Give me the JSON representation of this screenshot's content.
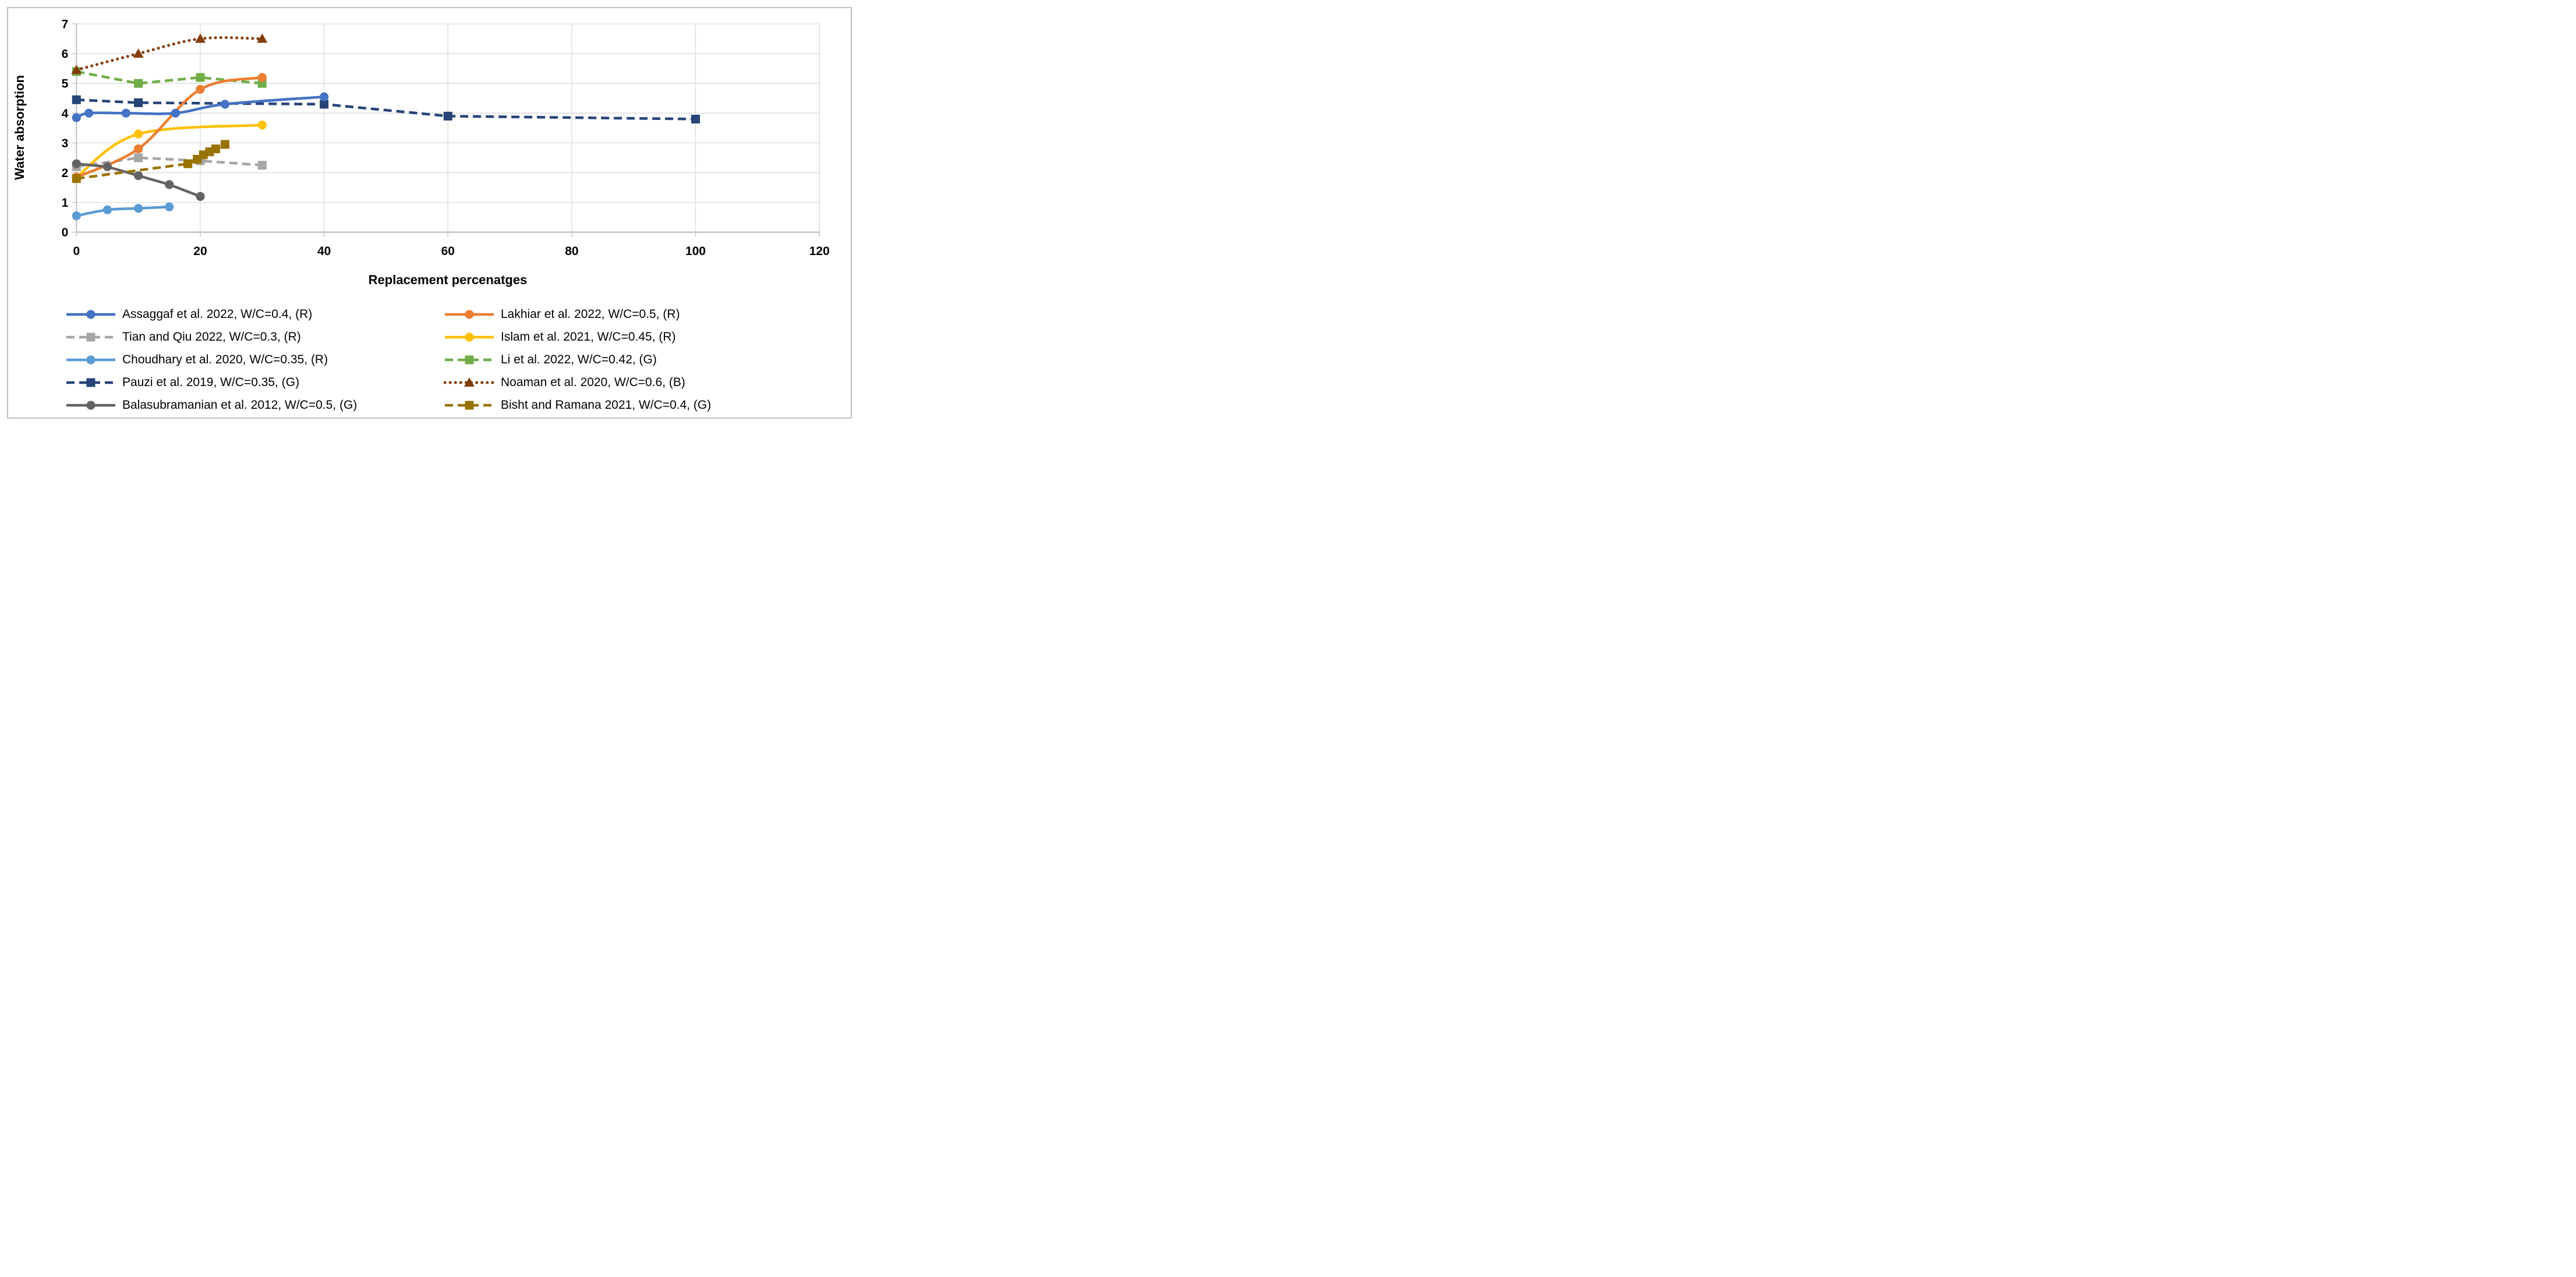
{
  "chart_data": {
    "type": "line",
    "title": "",
    "xlabel": "Replacement percenatges",
    "ylabel": "Water absorption",
    "xlim": [
      0,
      120
    ],
    "ylim": [
      0,
      7
    ],
    "x_ticks": [
      0,
      20,
      40,
      60,
      80,
      100,
      120
    ],
    "y_ticks": [
      0,
      1,
      2,
      3,
      4,
      5,
      6,
      7
    ],
    "grid": true,
    "legend_position": "bottom",
    "legend_columns": 2,
    "colors": {
      "gridline": "#D9D9D9",
      "axis_line": "#BFBFBF",
      "text": "#000000"
    },
    "series": [
      {
        "name": "Assaggaf et al. 2022, W/C=0.4, (R)",
        "color": "#4472C4",
        "line": "solid",
        "marker": "circle",
        "smooth": true,
        "points": [
          [
            0,
            3.85
          ],
          [
            2,
            4.0
          ],
          [
            8,
            4.0
          ],
          [
            16,
            4.0
          ],
          [
            24,
            4.3
          ],
          [
            40,
            4.55
          ]
        ]
      },
      {
        "name": "Tian and Qiu 2022, W/C=0.3, (R)",
        "color": "#A6A6A6",
        "line": "dashed",
        "marker": "square",
        "smooth": false,
        "points": [
          [
            0,
            2.2
          ],
          [
            10,
            2.5
          ],
          [
            20,
            2.4
          ],
          [
            30,
            2.25
          ]
        ]
      },
      {
        "name": "Choudhary et al. 2020, W/C=0.35, (R)",
        "color": "#5B9BD5",
        "line": "solid",
        "marker": "circle",
        "smooth": true,
        "points": [
          [
            0,
            0.55
          ],
          [
            5,
            0.75
          ],
          [
            10,
            0.8
          ],
          [
            15,
            0.85
          ]
        ]
      },
      {
        "name": "Pauzi et al. 2019, W/C=0.35, (G)",
        "color": "#264478",
        "line": "dashed",
        "marker": "square",
        "smooth": false,
        "points": [
          [
            0,
            4.45
          ],
          [
            10,
            4.35
          ],
          [
            40,
            4.3
          ],
          [
            60,
            3.9
          ],
          [
            100,
            3.8
          ]
        ]
      },
      {
        "name": "Balasubramanian et al. 2012, W/C=0.5, (G)",
        "color": "#636363",
        "line": "solid",
        "marker": "circle",
        "smooth": false,
        "points": [
          [
            0,
            2.3
          ],
          [
            5,
            2.2
          ],
          [
            10,
            1.9
          ],
          [
            15,
            1.6
          ],
          [
            20,
            1.2
          ]
        ]
      },
      {
        "name": "Lakhiar et al. 2022, W/C=0.5, (R)",
        "color": "#ED7D31",
        "line": "solid",
        "marker": "circle",
        "smooth": true,
        "points": [
          [
            0,
            1.85
          ],
          [
            10,
            2.8
          ],
          [
            20,
            4.8
          ],
          [
            30,
            5.2
          ]
        ]
      },
      {
        "name": "Islam et al. 2021, W/C=0.45, (R)",
        "color": "#FFC000",
        "line": "solid",
        "marker": "circle",
        "smooth": true,
        "points": [
          [
            0,
            1.85
          ],
          [
            10,
            3.3
          ],
          [
            30,
            3.6
          ]
        ]
      },
      {
        "name": "Li et al. 2022, W/C=0.42, (G)",
        "color": "#70AD47",
        "line": "dashed",
        "marker": "square",
        "smooth": false,
        "points": [
          [
            0,
            5.4
          ],
          [
            10,
            5.0
          ],
          [
            20,
            5.2
          ],
          [
            30,
            5.0
          ]
        ]
      },
      {
        "name": "Noaman et al. 2020, W/C=0.6, (B)",
        "color": "#843C0B",
        "line": "dotted",
        "marker": "triangle",
        "smooth": true,
        "points": [
          [
            0,
            5.45
          ],
          [
            10,
            6.0
          ],
          [
            20,
            6.5
          ],
          [
            30,
            6.5
          ]
        ]
      },
      {
        "name": "Bisht and Ramana 2021, W/C=0.4, (G)",
        "color": "#997300",
        "line": "dashed",
        "marker": "square",
        "smooth": false,
        "points": [
          [
            0,
            1.8
          ],
          [
            18,
            2.3
          ],
          [
            19.5,
            2.45
          ],
          [
            20.5,
            2.6
          ],
          [
            21.5,
            2.7
          ],
          [
            22.5,
            2.8
          ],
          [
            24,
            2.95
          ]
        ]
      }
    ],
    "draw_order": [
      1,
      3,
      7,
      8,
      6,
      5,
      2,
      4,
      9,
      0
    ]
  }
}
